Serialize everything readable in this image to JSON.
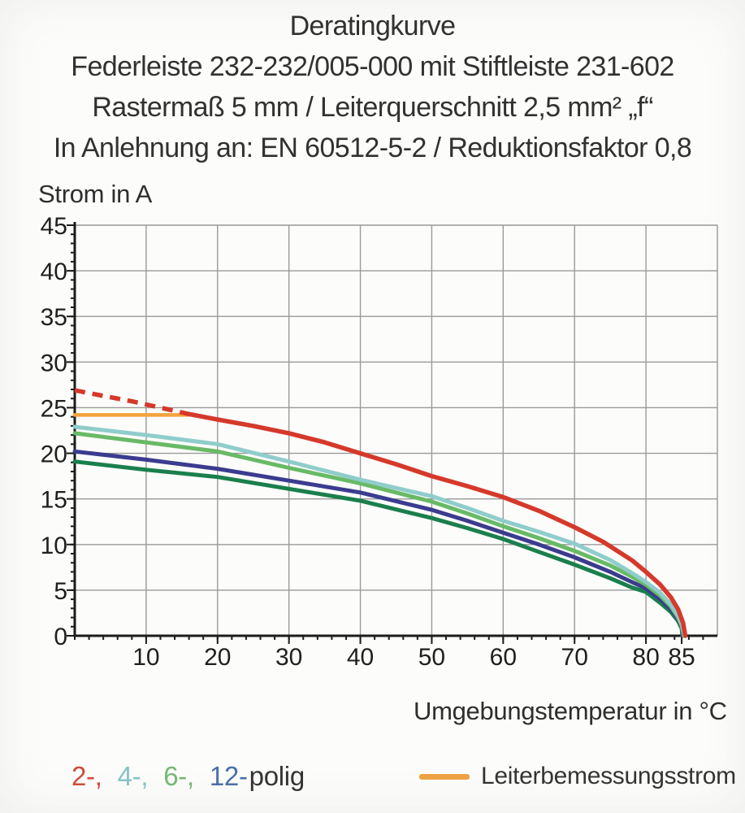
{
  "title_block": {
    "line1": "Deratingkurve",
    "line2": "Federleiste 232-232/005-000 mit Stiftleiste 231-602",
    "line3": "Rastermaß 5 mm / Leiterquerschnitt 2,5 mm² „f“",
    "line4": "In Anlehnung an: EN 60512-5-2 / Reduktionsfaktor 0,8"
  },
  "axes": {
    "y_title": "Strom in A",
    "x_title": "Umgebungstemperatur in °C"
  },
  "legend": {
    "pole_items": [
      {
        "label": "2-,",
        "color": "#cf4a3d"
      },
      {
        "label": "4-,",
        "color": "#86c2c4"
      },
      {
        "label": "6-,",
        "color": "#74b873"
      },
      {
        "label": "12-",
        "color": "#4a6fa8"
      }
    ],
    "pole_suffix": "polig",
    "rated_current_label": "Leiterbemessungsstrom",
    "rated_current_color": "#eda344"
  },
  "chart_data": {
    "type": "line",
    "title": "Deratingkurve",
    "xlabel": "Umgebungstemperatur in °C",
    "ylabel": "Strom in A",
    "xlim": [
      0,
      90
    ],
    "ylim": [
      0,
      45
    ],
    "grid": {
      "x_step": 10,
      "y_step": 5,
      "color": "#9a9a9a",
      "on": true
    },
    "x_labeled_ticks": [
      10,
      20,
      30,
      40,
      50,
      60,
      70,
      80,
      85
    ],
    "x_minor_step": 2,
    "x_minor_max": 88,
    "y_labeled_ticks": [
      0,
      5,
      10,
      15,
      20,
      25,
      30,
      35,
      40,
      45
    ],
    "y_minor_step": 1,
    "legend_position": "bottom",
    "series": [
      {
        "id": "dark-green-unlabeled",
        "name": "dunkelgrüne Zusatzkurve",
        "color": "#1a7f4c",
        "width": 5,
        "dash": false,
        "points": [
          [
            0,
            19.1
          ],
          [
            10,
            18.2
          ],
          [
            20,
            17.4
          ],
          [
            30,
            16.1
          ],
          [
            40,
            14.8
          ],
          [
            50,
            12.9
          ],
          [
            55,
            11.8
          ],
          [
            60,
            10.6
          ],
          [
            65,
            9.2
          ],
          [
            70,
            7.8
          ],
          [
            75,
            6.3
          ],
          [
            78,
            5.3
          ],
          [
            80,
            4.8
          ],
          [
            82,
            3.6
          ],
          [
            83.5,
            2.6
          ],
          [
            84.5,
            1.6
          ],
          [
            85,
            0.8
          ],
          [
            85.1,
            0
          ]
        ]
      },
      {
        "id": "12-polig",
        "name": "12-polig",
        "color": "#3b3b8f",
        "width": 5,
        "dash": false,
        "points": [
          [
            0,
            20.2
          ],
          [
            10,
            19.3
          ],
          [
            20,
            18.3
          ],
          [
            30,
            17.0
          ],
          [
            40,
            15.7
          ],
          [
            50,
            13.8
          ],
          [
            55,
            12.6
          ],
          [
            60,
            11.3
          ],
          [
            65,
            10.0
          ],
          [
            70,
            8.6
          ],
          [
            75,
            7.0
          ],
          [
            78,
            5.9
          ],
          [
            80,
            5.2
          ],
          [
            82,
            4.0
          ],
          [
            83.5,
            2.9
          ],
          [
            84.5,
            1.8
          ],
          [
            85,
            1.0
          ],
          [
            85.2,
            0
          ]
        ]
      },
      {
        "id": "6-polig",
        "name": "6-polig",
        "color": "#68ba66",
        "width": 5,
        "dash": false,
        "points": [
          [
            0,
            22.2
          ],
          [
            10,
            21.2
          ],
          [
            20,
            20.2
          ],
          [
            30,
            18.4
          ],
          [
            40,
            16.7
          ],
          [
            50,
            14.7
          ],
          [
            55,
            13.4
          ],
          [
            60,
            12.0
          ],
          [
            65,
            10.7
          ],
          [
            70,
            9.3
          ],
          [
            75,
            7.7
          ],
          [
            78,
            6.5
          ],
          [
            80,
            5.6
          ],
          [
            82,
            4.4
          ],
          [
            83.5,
            3.2
          ],
          [
            84.5,
            2.0
          ],
          [
            85,
            1.1
          ],
          [
            85.3,
            0
          ]
        ]
      },
      {
        "id": "4-polig",
        "name": "4-polig",
        "color": "#8fcdcb",
        "width": 5,
        "dash": false,
        "points": [
          [
            0,
            22.9
          ],
          [
            10,
            22.0
          ],
          [
            20,
            21.0
          ],
          [
            30,
            19.1
          ],
          [
            40,
            17.1
          ],
          [
            50,
            15.3
          ],
          [
            55,
            14.0
          ],
          [
            60,
            12.6
          ],
          [
            65,
            11.4
          ],
          [
            70,
            10.1
          ],
          [
            75,
            8.3
          ],
          [
            78,
            6.9
          ],
          [
            80,
            5.9
          ],
          [
            82,
            4.7
          ],
          [
            83.5,
            3.4
          ],
          [
            84.5,
            2.2
          ],
          [
            85,
            1.3
          ],
          [
            85.4,
            0
          ]
        ]
      },
      {
        "id": "leiterbemessungsstrom",
        "name": "Leiterbemessungsstrom",
        "color": "#f2a43c",
        "width": 4.5,
        "dash": false,
        "points": [
          [
            0,
            24.2
          ],
          [
            16,
            24.2
          ]
        ]
      },
      {
        "id": "2-polig-dashed",
        "name": "2-polig (gestrichelt)",
        "color": "#d5392b",
        "width": 5.5,
        "dash": true,
        "points": [
          [
            0,
            26.9
          ],
          [
            4,
            26.3
          ],
          [
            8,
            25.7
          ],
          [
            12,
            25.0
          ],
          [
            16,
            24.3
          ]
        ]
      },
      {
        "id": "2-polig",
        "name": "2-polig",
        "color": "#d5392b",
        "width": 5.5,
        "dash": false,
        "points": [
          [
            16,
            24.3
          ],
          [
            20,
            23.7
          ],
          [
            25,
            23.0
          ],
          [
            30,
            22.2
          ],
          [
            35,
            21.2
          ],
          [
            40,
            20.0
          ],
          [
            45,
            18.8
          ],
          [
            50,
            17.5
          ],
          [
            55,
            16.4
          ],
          [
            60,
            15.2
          ],
          [
            65,
            13.7
          ],
          [
            70,
            11.9
          ],
          [
            74,
            10.3
          ],
          [
            78,
            8.3
          ],
          [
            80,
            7.0
          ],
          [
            82,
            5.6
          ],
          [
            83.5,
            4.2
          ],
          [
            84.5,
            2.9
          ],
          [
            85.2,
            1.4
          ],
          [
            85.5,
            0
          ]
        ]
      }
    ]
  }
}
